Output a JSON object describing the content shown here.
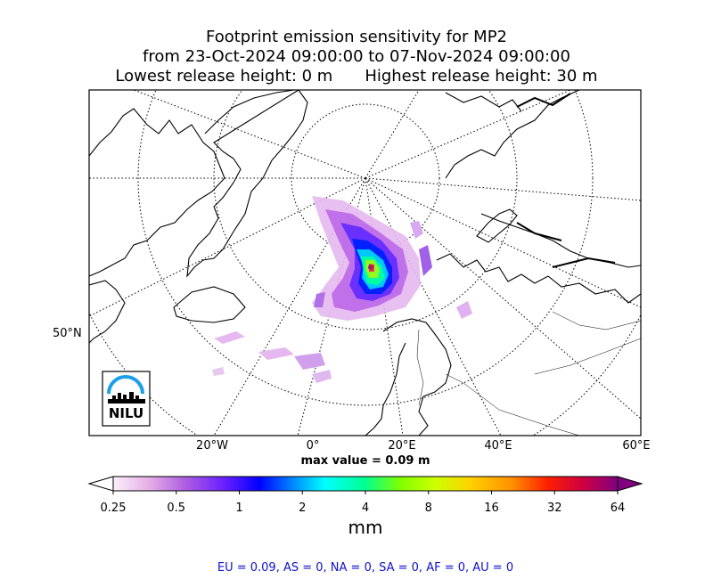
{
  "title": {
    "line1": "Footprint emission sensitivity for MP2",
    "line2": "from 23-Oct-2024 09:00:00 to 07-Nov-2024 09:00:00",
    "line3_low": "Lowest release height: 0 m",
    "line3_high": "Highest release height: 30 m"
  },
  "axes": {
    "lon_labels": [
      "20°W",
      "0°",
      "20°E",
      "40°E",
      "60°E"
    ],
    "lat_labels": [
      "50°N"
    ]
  },
  "max_value": "max value = 0.09 m",
  "colorbar": {
    "ticks": [
      "0.25",
      "0.5",
      "1",
      "2",
      "4",
      "8",
      "16",
      "32",
      "64"
    ],
    "unit": "mm"
  },
  "logo": {
    "text": "NILU"
  },
  "regions": "EU = 0.09,  AS = 0,  NA = 0,  SA = 0,  AF = 0,  AU = 0"
}
